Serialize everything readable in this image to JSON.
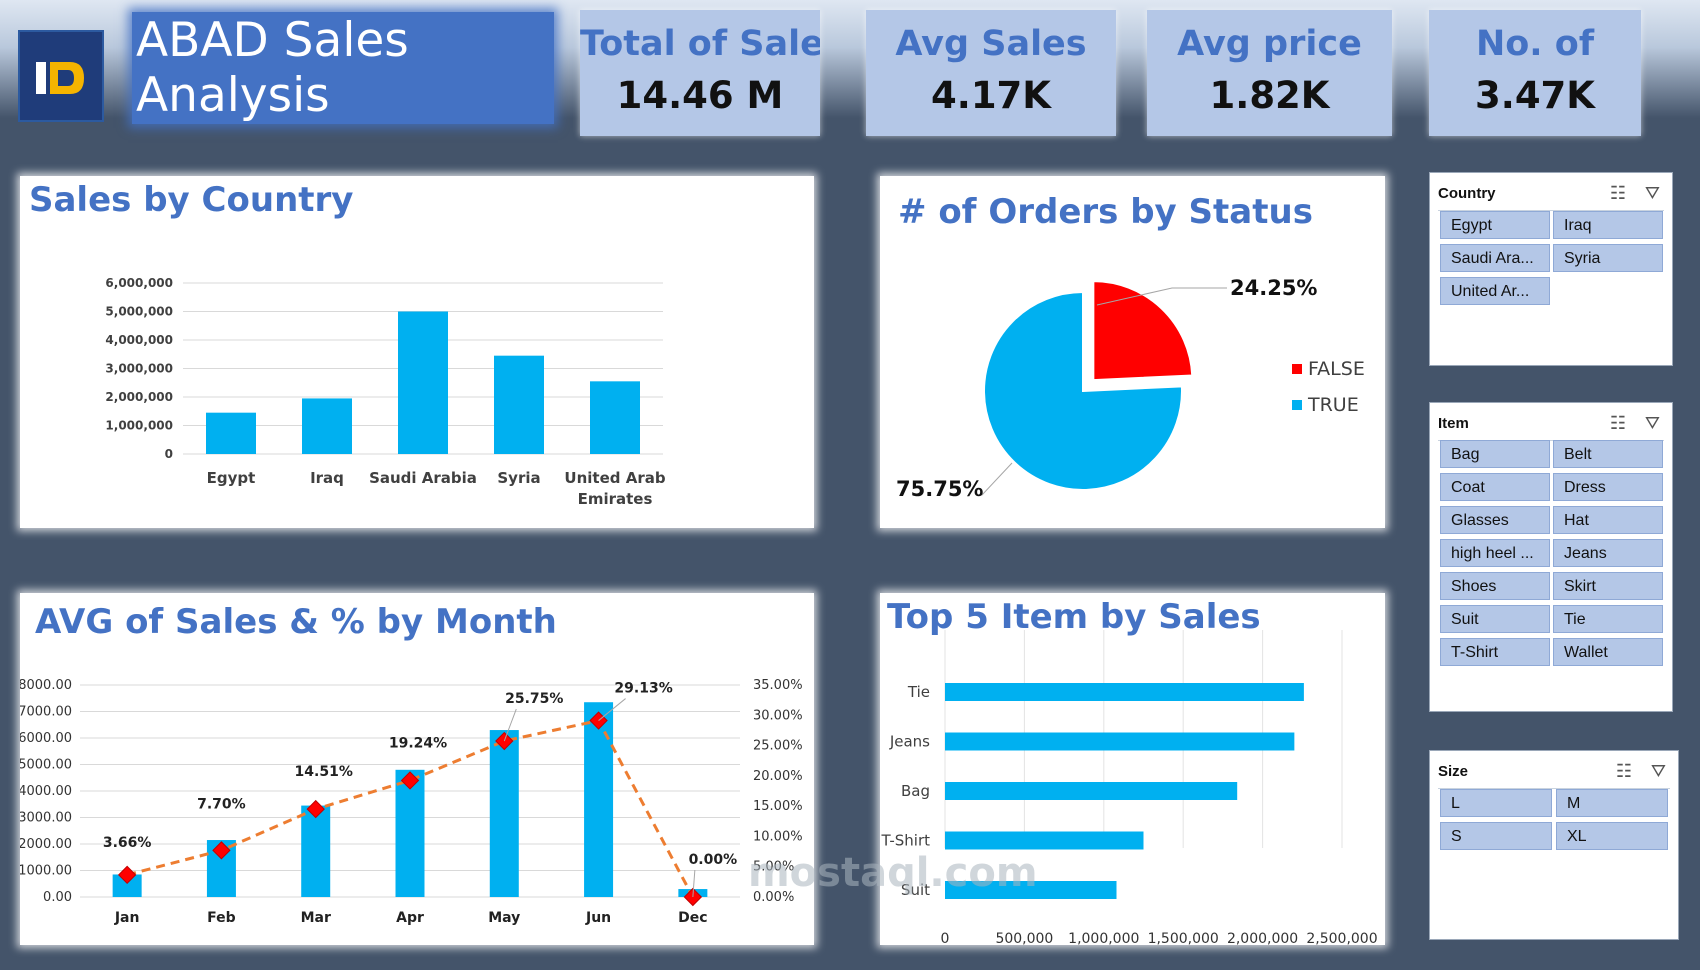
{
  "header": {
    "title": "ABAD Sales Analysis",
    "logo_text": "ID"
  },
  "kpis": [
    {
      "label": "Total of Sales",
      "value": "14.46 M"
    },
    {
      "label": "Avg Sales",
      "value": "4.17K"
    },
    {
      "label": "Avg price",
      "value": "1.82K"
    },
    {
      "label": "No. of",
      "value": "3.47K"
    }
  ],
  "watermark": "mostaql.com",
  "charts": {
    "country": {
      "title": "Sales by Country",
      "type": "bar",
      "categories": [
        "Egypt",
        "Iraq",
        "Saudi Arabia",
        "Syria",
        "United Arab Emirates"
      ],
      "values": [
        1450000,
        1950000,
        5000000,
        3450000,
        2550000
      ],
      "ylim": [
        0,
        6000000
      ],
      "yticks": [
        "0",
        "1,000,000",
        "2,000,000",
        "3,000,000",
        "4,000,000",
        "5,000,000",
        "6,000,000"
      ]
    },
    "status": {
      "title": "# of Orders by Status",
      "type": "pie",
      "slices": [
        {
          "name": "FALSE",
          "value": 24.25,
          "label": "24.25%",
          "color": "#ff0000"
        },
        {
          "name": "TRUE",
          "value": 75.75,
          "label": "75.75%",
          "color": "#00b0f0"
        }
      ]
    },
    "month": {
      "title": "AVG of Sales & % by Month",
      "type": "bar",
      "categories": [
        "Jan",
        "Feb",
        "Mar",
        "Apr",
        "May",
        "Jun",
        "Dec"
      ],
      "values": [
        850,
        2150,
        3450,
        4800,
        6300,
        7350,
        300
      ],
      "pct": [
        3.66,
        7.7,
        14.51,
        19.24,
        25.75,
        29.13,
        0.0
      ],
      "pct_labels": [
        "3.66%",
        "7.70%",
        "14.51%",
        "19.24%",
        "25.75%",
        "29.13%",
        "0.00%"
      ],
      "ylim": [
        0,
        8000
      ],
      "yticks": [
        "0.00",
        "1000.00",
        "2000.00",
        "3000.00",
        "4000.00",
        "5000.00",
        "6000.00",
        "7000.00",
        "8000.00"
      ],
      "y2lim": [
        0,
        35
      ],
      "y2ticks": [
        "0.00%",
        "5.00%",
        "10.00%",
        "15.00%",
        "20.00%",
        "25.00%",
        "30.00%",
        "35.00%"
      ]
    },
    "items": {
      "title": "Top 5 Item by Sales",
      "type": "bar",
      "categories": [
        "Tie",
        "Jeans",
        "Bag",
        "T-Shirt",
        "Suit"
      ],
      "values": [
        2260000,
        2200000,
        1840000,
        1250000,
        1080000
      ],
      "xlim": [
        0,
        2500000
      ],
      "xticks": [
        "0",
        "500,000",
        "1,000,000",
        "1,500,000",
        "2,000,000",
        "2,500,000"
      ]
    }
  },
  "slicers": {
    "country": {
      "title": "Country",
      "items": [
        "Egypt",
        "Iraq",
        "Saudi Ara...",
        "Syria",
        "United Ar..."
      ]
    },
    "item": {
      "title": "Item",
      "items": [
        "Bag",
        "Belt",
        "Coat",
        "Dress",
        "Glasses",
        "Hat",
        "high heel ...",
        "Jeans",
        "Shoes",
        "Skirt",
        "Suit",
        "Tie",
        "T-Shirt",
        "Wallet"
      ]
    },
    "size": {
      "title": "Size",
      "items": [
        "L",
        "M",
        "S",
        "XL"
      ]
    }
  }
}
